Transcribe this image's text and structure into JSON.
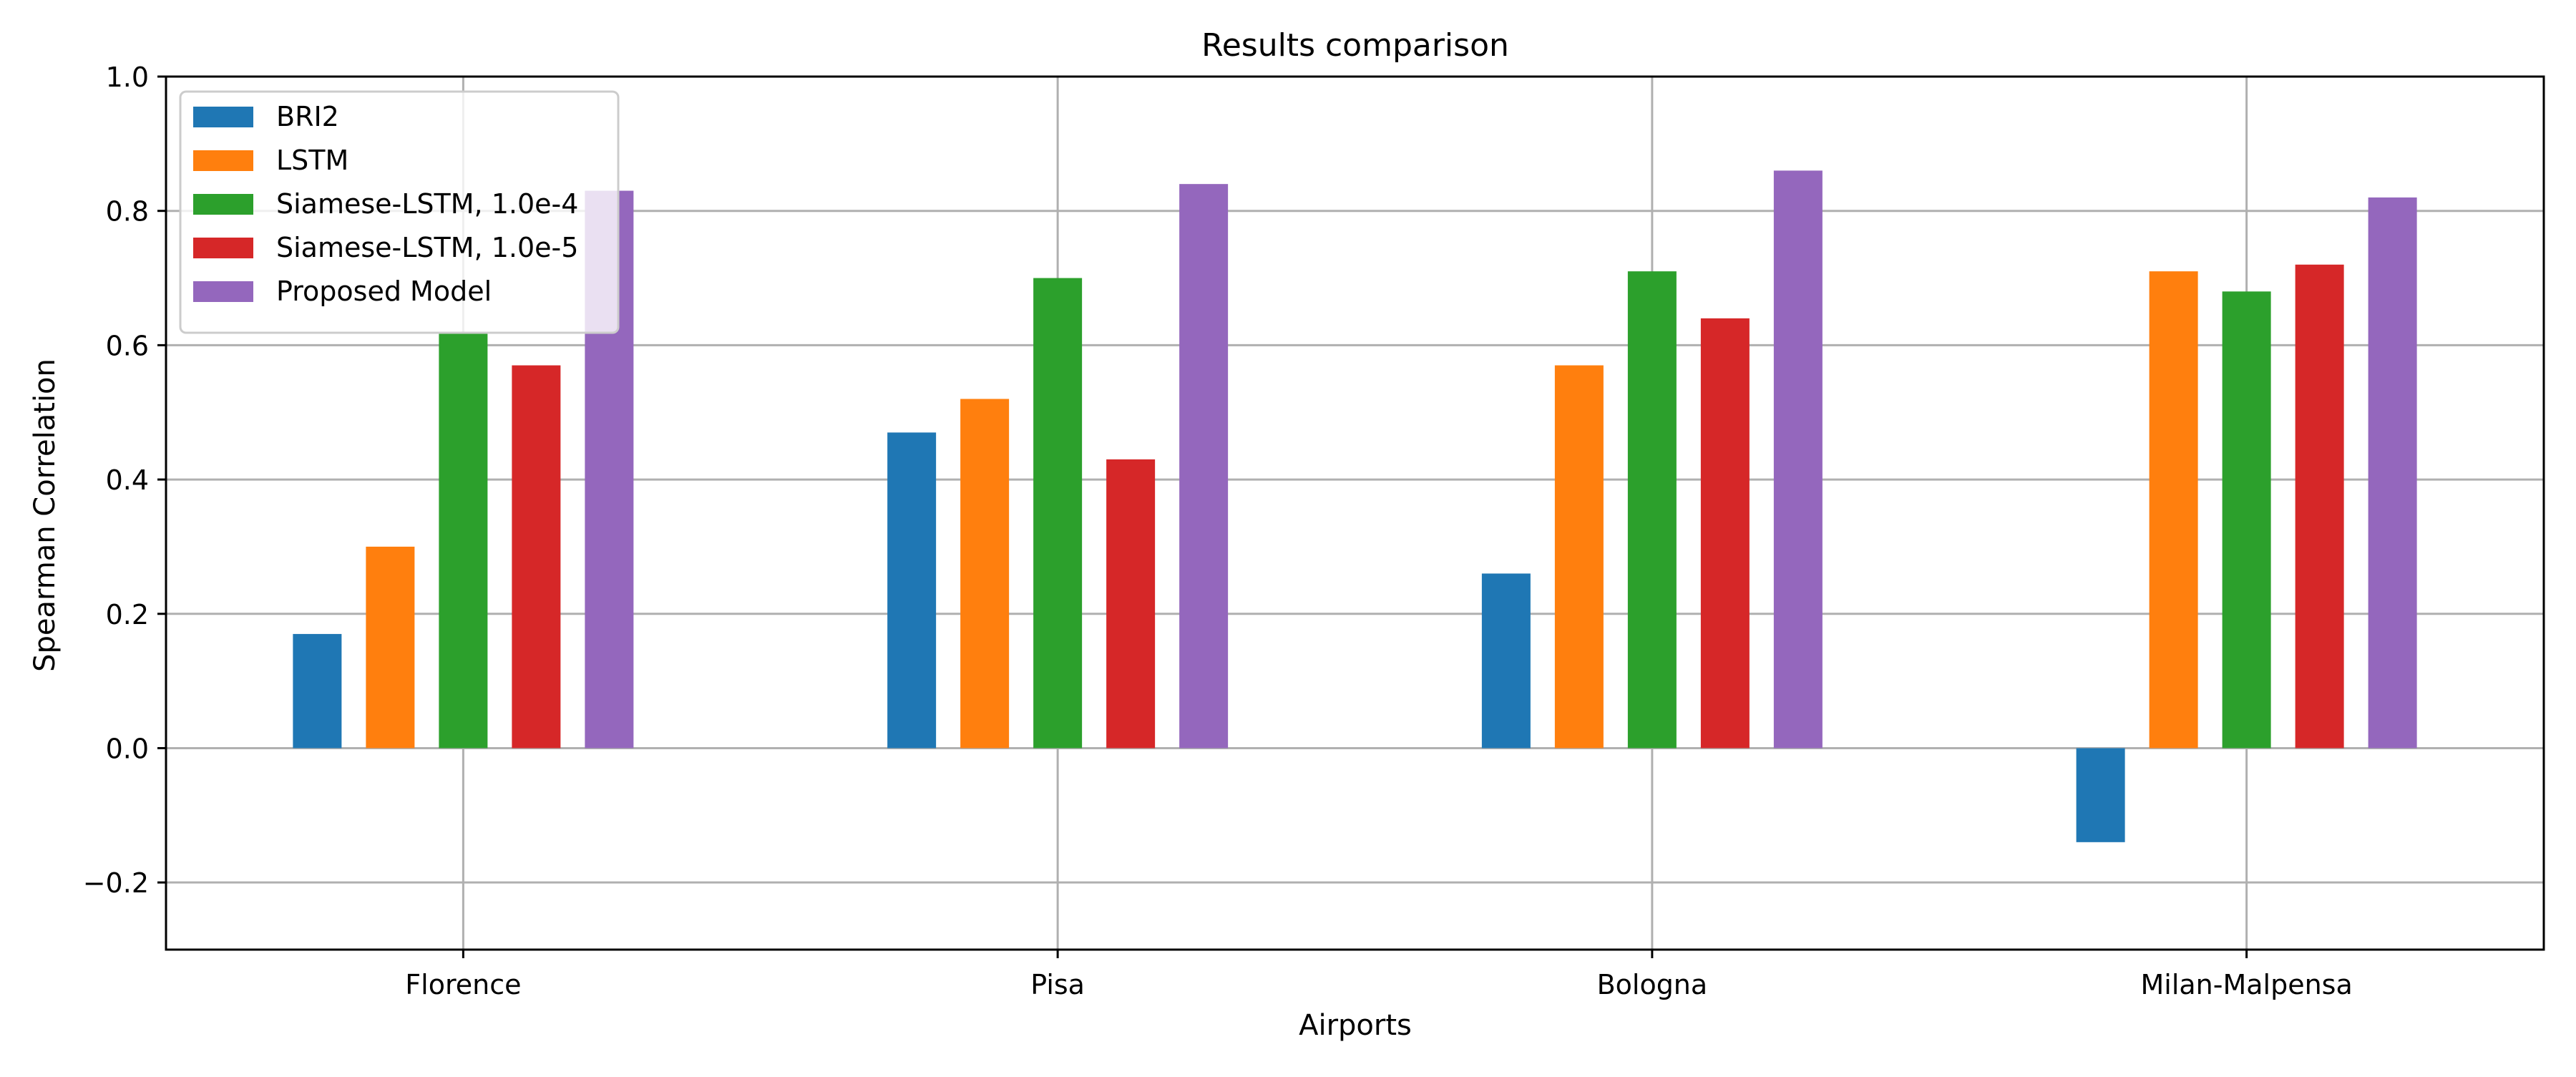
{
  "chart_data": {
    "type": "bar",
    "title": "Results comparison",
    "xlabel": "Airports",
    "ylabel": "Spearman Correlation",
    "ylim": [
      -0.3,
      1.0
    ],
    "yticks": [
      -0.2,
      0.0,
      0.2,
      0.4,
      0.6,
      0.8,
      1.0
    ],
    "ytick_labels": [
      "−0.2",
      "0.0",
      "0.2",
      "0.4",
      "0.6",
      "0.8",
      "1.0"
    ],
    "categories": [
      "Florence",
      "Pisa",
      "Bologna",
      "Milan-Malpensa"
    ],
    "grid": true,
    "legend_position": "top-left",
    "series": [
      {
        "name": "BRI2",
        "color": "#1f77b4",
        "values": [
          0.17,
          0.47,
          0.26,
          -0.14
        ]
      },
      {
        "name": "LSTM",
        "color": "#ff7f0e",
        "values": [
          0.3,
          0.52,
          0.57,
          0.71
        ]
      },
      {
        "name": "Siamese-LSTM, 1.0e-4",
        "color": "#2ca02c",
        "values": [
          0.62,
          0.7,
          0.71,
          0.68
        ]
      },
      {
        "name": "Siamese-LSTM, 1.0e-5",
        "color": "#d62728",
        "values": [
          0.57,
          0.43,
          0.64,
          0.72
        ]
      },
      {
        "name": "Proposed Model",
        "color": "#9467bd",
        "values": [
          0.83,
          0.84,
          0.86,
          0.82
        ]
      }
    ]
  }
}
